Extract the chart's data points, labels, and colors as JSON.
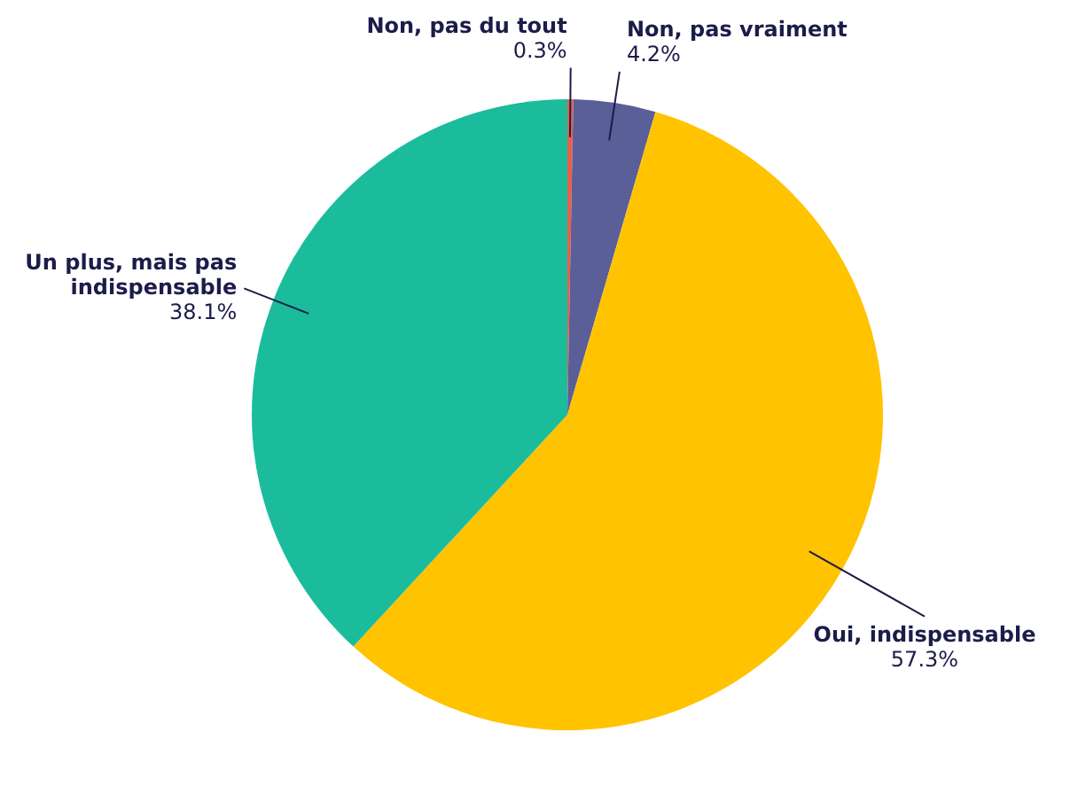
{
  "chart_data": {
    "type": "pie",
    "categories": [
      "Non, pas du tout",
      "Non, pas vraiment",
      "Oui, indispensable",
      "Un plus, mais pas indispensable"
    ],
    "values": [
      0.3,
      4.2,
      57.3,
      38.1
    ],
    "colors": [
      "#e8604c",
      "#5b5f97",
      "#ffc300",
      "#1abc9c"
    ],
    "value_labels": [
      "0.3%",
      "4.2%",
      "57.3%",
      "38.1%"
    ],
    "legend": false
  }
}
